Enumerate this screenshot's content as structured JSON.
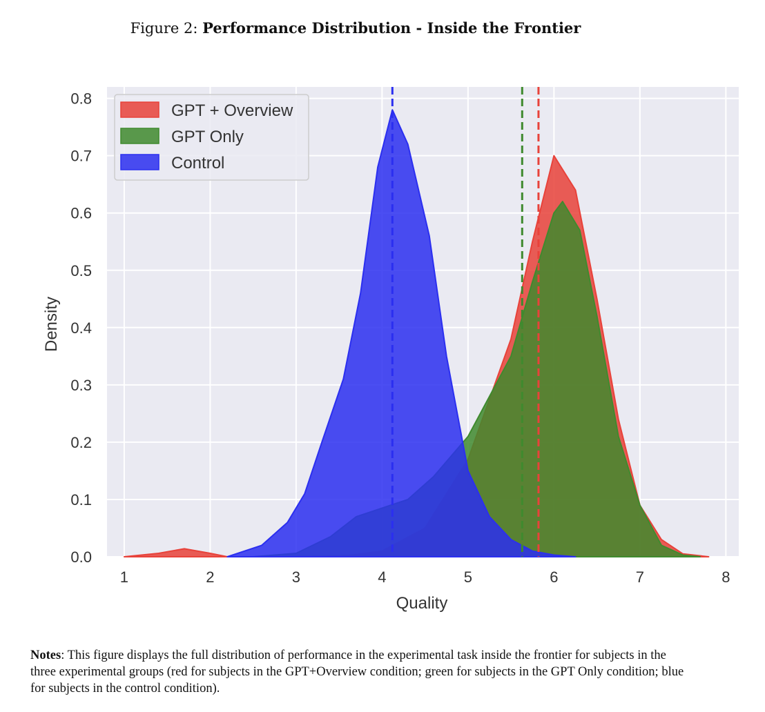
{
  "figure": {
    "prefix": "Figure 2:",
    "title": "Performance Distribution - Inside the Frontier"
  },
  "chart_data": {
    "type": "area",
    "xlabel": "Quality",
    "ylabel": "Density",
    "xlim": [
      0.8,
      8.15
    ],
    "ylim": [
      0,
      0.82
    ],
    "xticks": [
      "1",
      "2",
      "3",
      "4",
      "5",
      "6",
      "7",
      "8"
    ],
    "yticks": [
      "0.0",
      "0.1",
      "0.2",
      "0.3",
      "0.4",
      "0.5",
      "0.6",
      "0.7",
      "0.8"
    ],
    "grid": true,
    "legend_position": "top-left",
    "series": [
      {
        "name": "GPT + Overview",
        "color": "#e8423a",
        "mean": 5.82,
        "points": [
          [
            1.0,
            0.0
          ],
          [
            1.4,
            0.006
          ],
          [
            1.7,
            0.014
          ],
          [
            2.0,
            0.006
          ],
          [
            2.2,
            0.0
          ],
          [
            3.0,
            0.0
          ],
          [
            3.6,
            0.002
          ],
          [
            4.0,
            0.01
          ],
          [
            4.5,
            0.05
          ],
          [
            5.0,
            0.17
          ],
          [
            5.5,
            0.38
          ],
          [
            5.75,
            0.55
          ],
          [
            6.0,
            0.7
          ],
          [
            6.25,
            0.64
          ],
          [
            6.5,
            0.45
          ],
          [
            6.75,
            0.24
          ],
          [
            7.0,
            0.09
          ],
          [
            7.25,
            0.03
          ],
          [
            7.5,
            0.005
          ],
          [
            7.8,
            0.0
          ]
        ]
      },
      {
        "name": "GPT Only",
        "color": "#3f8a2e",
        "mean": 5.63,
        "points": [
          [
            2.5,
            0.0
          ],
          [
            3.0,
            0.006
          ],
          [
            3.4,
            0.035
          ],
          [
            3.7,
            0.07
          ],
          [
            4.0,
            0.085
          ],
          [
            4.3,
            0.1
          ],
          [
            4.6,
            0.14
          ],
          [
            5.0,
            0.21
          ],
          [
            5.25,
            0.28
          ],
          [
            5.5,
            0.35
          ],
          [
            5.75,
            0.48
          ],
          [
            6.0,
            0.6
          ],
          [
            6.1,
            0.62
          ],
          [
            6.3,
            0.57
          ],
          [
            6.5,
            0.42
          ],
          [
            6.75,
            0.21
          ],
          [
            7.0,
            0.09
          ],
          [
            7.25,
            0.02
          ],
          [
            7.5,
            0.003
          ],
          [
            7.7,
            0.0
          ]
        ]
      },
      {
        "name": "Control",
        "color": "#2b2ff0",
        "mean": 4.12,
        "points": [
          [
            2.2,
            0.0
          ],
          [
            2.6,
            0.02
          ],
          [
            2.9,
            0.06
          ],
          [
            3.1,
            0.11
          ],
          [
            3.3,
            0.2
          ],
          [
            3.55,
            0.31
          ],
          [
            3.75,
            0.46
          ],
          [
            3.95,
            0.68
          ],
          [
            4.12,
            0.78
          ],
          [
            4.3,
            0.72
          ],
          [
            4.55,
            0.56
          ],
          [
            4.75,
            0.35
          ],
          [
            5.0,
            0.15
          ],
          [
            5.25,
            0.07
          ],
          [
            5.5,
            0.03
          ],
          [
            5.75,
            0.01
          ],
          [
            6.0,
            0.003
          ],
          [
            6.25,
            0.0
          ]
        ]
      }
    ]
  },
  "notes": {
    "lead": "Notes",
    "text": ": This figure displays the full distribution of performance in the experimental task inside the frontier for subjects in the three experimental groups (red for subjects in the GPT+Overview condition; green for subjects in the GPT Only condition; blue for subjects in the control condition)."
  }
}
